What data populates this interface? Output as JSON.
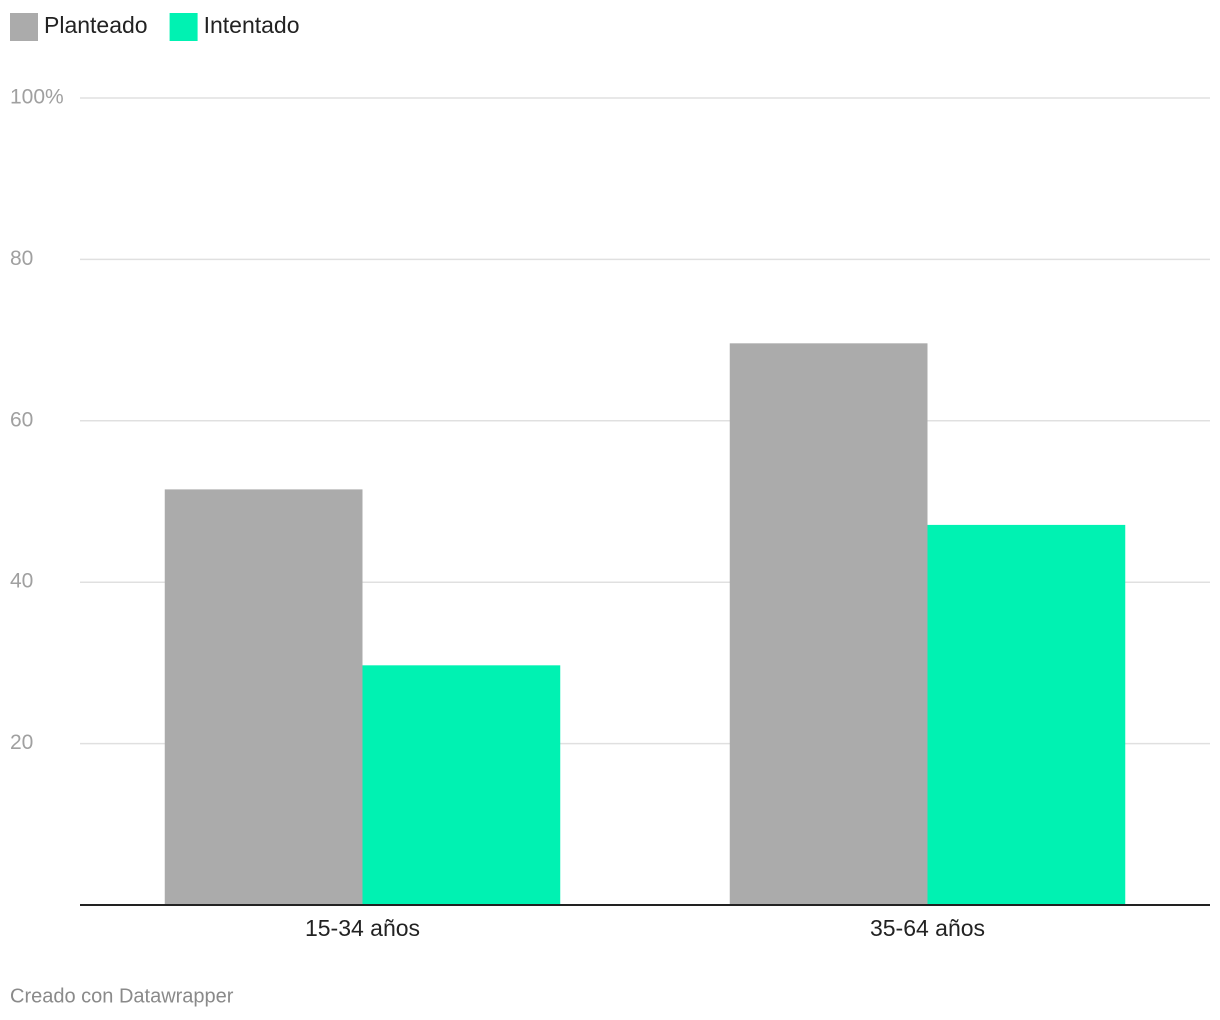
{
  "chart_data": {
    "type": "bar",
    "categories": [
      "15-34 años",
      "35-64 años"
    ],
    "series": [
      {
        "name": "Planteado",
        "color": "#ababab",
        "values": [
          51.5,
          69.6
        ]
      },
      {
        "name": "Intentado",
        "color": "#00f2b2",
        "values": [
          29.7,
          47.1
        ]
      }
    ],
    "ylim": [
      0,
      100
    ],
    "yticks": [
      20,
      40,
      60,
      80,
      {
        "value": 100,
        "label": "100%"
      }
    ],
    "grid": true,
    "legend": "top-left",
    "credit": "Creado con Datawrapper"
  }
}
